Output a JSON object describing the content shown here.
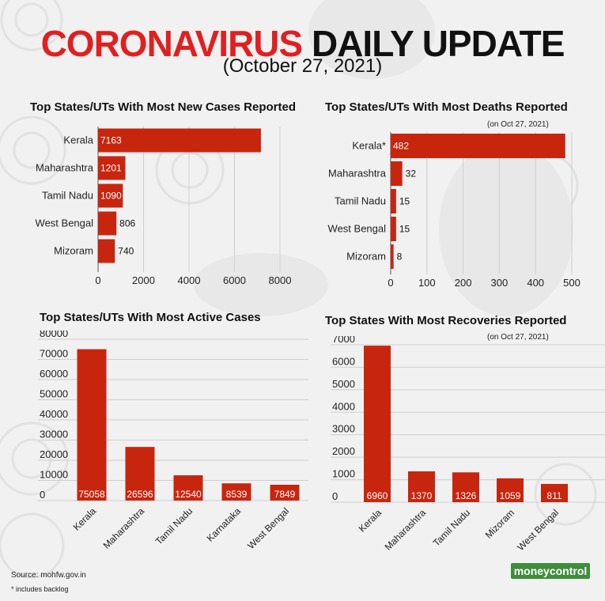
{
  "header": {
    "title_red": "CORONAVIRUS",
    "title_black": "DAILY UPDATE",
    "date": "(October 27, 2021)"
  },
  "footer": {
    "source": "Source: mohfw.gov.in",
    "footnote": "* includes backlog",
    "logo": "moneycontrol"
  },
  "colors": {
    "bar": "#c8250f",
    "title_red": "#e02020",
    "logo_green": "#3f8e3c"
  },
  "chart_data": [
    {
      "type": "bar",
      "orientation": "horizontal",
      "title": "Top States/UTs With Most New Cases Reported",
      "categories": [
        "Kerala",
        "Maharashtra",
        "Tamil Nadu",
        "West Bengal",
        "Mizoram"
      ],
      "values": [
        7163,
        1201,
        1090,
        806,
        740
      ],
      "labels": [
        "7163",
        "1201",
        "1090",
        "806",
        "740"
      ],
      "ticks": [
        0,
        2000,
        4000,
        6000,
        8000
      ],
      "xlim": [
        0,
        8000
      ],
      "grid": true
    },
    {
      "type": "bar",
      "orientation": "horizontal",
      "title": "Top States/UTs With Most Deaths Reported",
      "note": "(on Oct 27, 2021)",
      "categories": [
        "Kerala*",
        "Maharashtra",
        "Tamil Nadu",
        "West Bengal",
        "Mizoram"
      ],
      "values": [
        482,
        32,
        15,
        15,
        8
      ],
      "labels": [
        "482",
        "32",
        "15",
        "15",
        "8"
      ],
      "ticks": [
        0,
        100,
        200,
        300,
        400,
        500
      ],
      "xlim": [
        0,
        500
      ],
      "grid": true
    },
    {
      "type": "bar",
      "orientation": "vertical",
      "title": "Top States/UTs With Most Active Cases",
      "categories": [
        "Kerala",
        "Maharashtra",
        "Tamil Nadu",
        "Karnataka",
        "West Bengal"
      ],
      "values": [
        75058,
        26596,
        12540,
        8539,
        7849
      ],
      "labels": [
        "75058",
        "26596",
        "12540",
        "8539",
        "7849"
      ],
      "ticks": [
        0,
        10000,
        20000,
        30000,
        40000,
        50000,
        60000,
        70000,
        80000
      ],
      "ylim": [
        0,
        80000
      ],
      "grid": true
    },
    {
      "type": "bar",
      "orientation": "vertical",
      "title": "Top States With Most Recoveries Reported",
      "note": "(on Oct 27, 2021)",
      "categories": [
        "Kerala",
        "Maharashtra",
        "Tamil Nadu",
        "Mizoram",
        "West Bengal"
      ],
      "values": [
        6960,
        1370,
        1326,
        1059,
        811
      ],
      "labels": [
        "6960",
        "1370",
        "1326",
        "1059",
        "811"
      ],
      "ticks": [
        0,
        1000,
        2000,
        3000,
        4000,
        5000,
        6000,
        7000
      ],
      "ylim": [
        0,
        7000
      ],
      "grid": true
    }
  ]
}
